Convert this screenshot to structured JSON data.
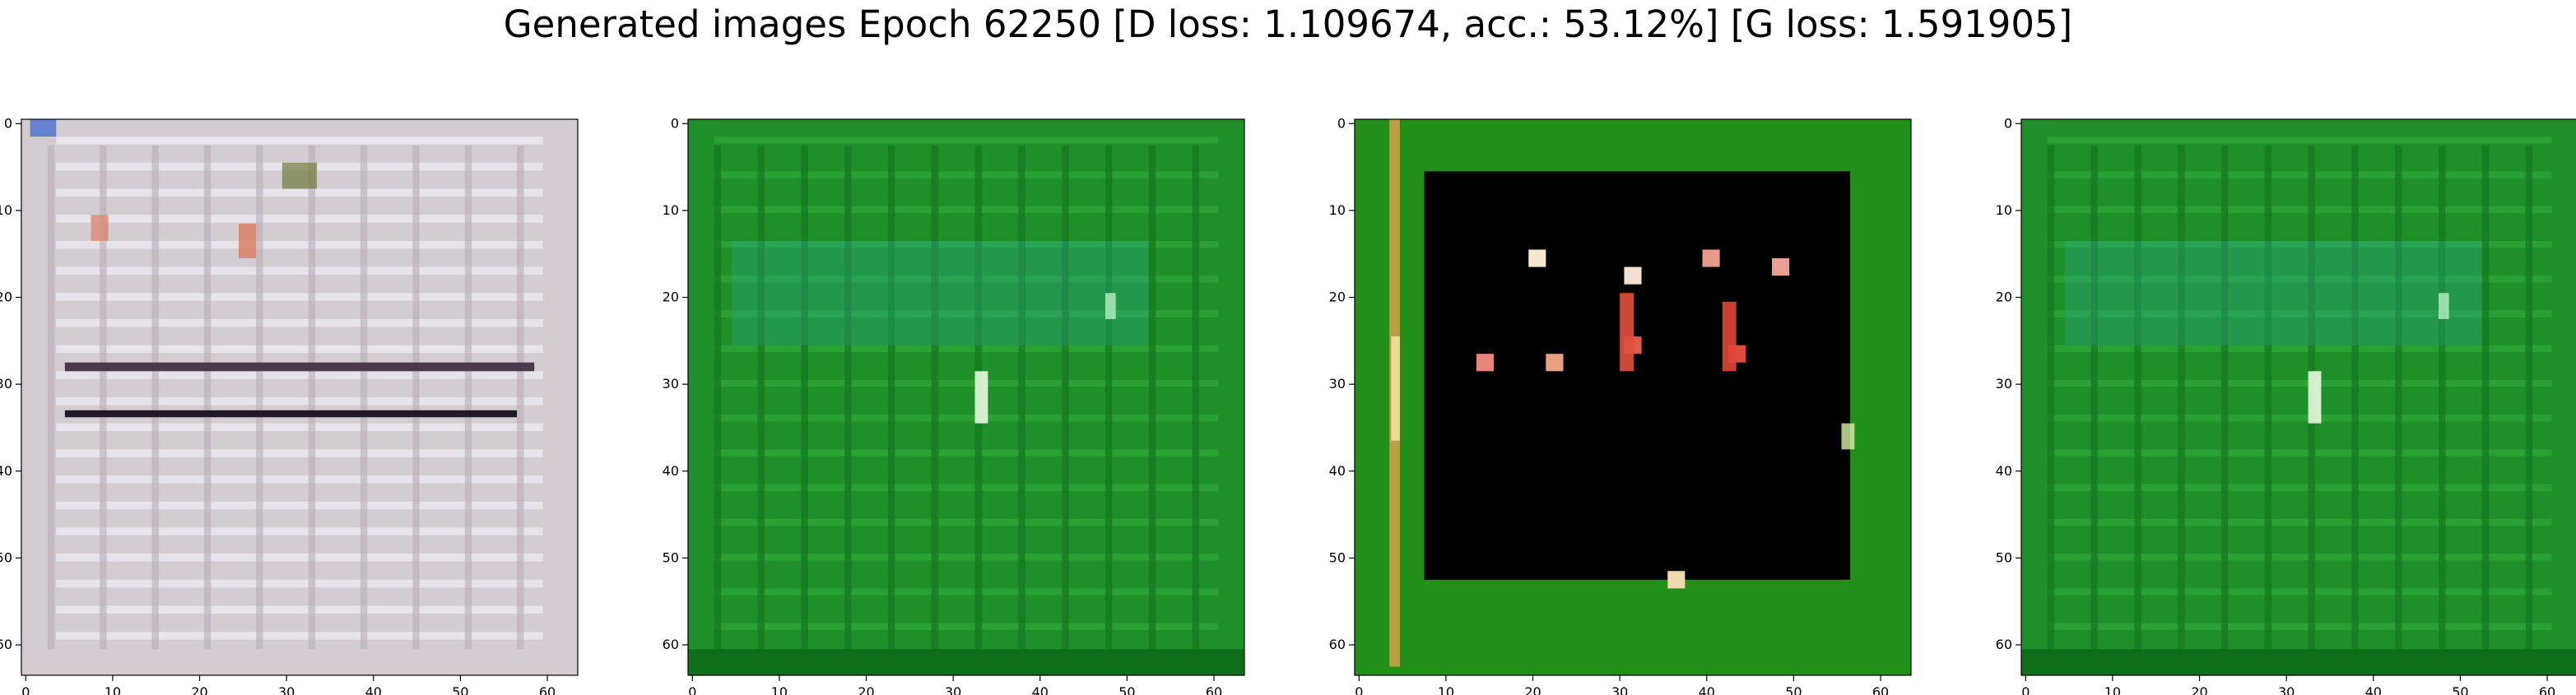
{
  "figure": {
    "title": "Generated images Epoch 62250 [D loss: 1.109674, acc.: 53.12%] [G loss: 1.591905]"
  },
  "chart_data": [
    {
      "type": "image",
      "description_colors": {
        "background": "#d3cdd2",
        "accent": "#8a7a86"
      },
      "xlim": [
        0,
        63
      ],
      "ylim": [
        63,
        0
      ],
      "xticks": [
        0,
        10,
        20,
        30,
        40,
        50,
        60
      ],
      "yticks": [
        0,
        10,
        20,
        30,
        40,
        50,
        60
      ],
      "xtick_labels": [
        "0",
        "10",
        "20",
        "30",
        "40",
        "50",
        "60"
      ],
      "ytick_labels": [
        "0",
        "10",
        "20",
        "30",
        "40",
        "50",
        "60"
      ]
    },
    {
      "type": "image",
      "description_colors": {
        "background": "#1f8f2a",
        "accent": "#2aa58d"
      },
      "xlim": [
        0,
        63
      ],
      "ylim": [
        63,
        0
      ],
      "xticks": [
        0,
        10,
        20,
        30,
        40,
        50,
        60
      ],
      "yticks": [
        0,
        10,
        20,
        30,
        40,
        50,
        60
      ],
      "xtick_labels": [
        "0",
        "10",
        "20",
        "30",
        "40",
        "50",
        "60"
      ],
      "ytick_labels": [
        "0",
        "10",
        "20",
        "30",
        "40",
        "50",
        "60"
      ]
    },
    {
      "type": "image",
      "description_colors": {
        "background": "#238f1b",
        "accent": "#000000"
      },
      "xlim": [
        0,
        63
      ],
      "ylim": [
        63,
        0
      ],
      "xticks": [
        0,
        10,
        20,
        30,
        40,
        50,
        60
      ],
      "yticks": [
        0,
        10,
        20,
        30,
        40,
        50,
        60
      ],
      "xtick_labels": [
        "0",
        "10",
        "20",
        "30",
        "40",
        "50",
        "60"
      ],
      "ytick_labels": [
        "0",
        "10",
        "20",
        "30",
        "40",
        "50",
        "60"
      ]
    },
    {
      "type": "image",
      "description_colors": {
        "background": "#1f8f2a",
        "accent": "#2aa58d"
      },
      "xlim": [
        0,
        63
      ],
      "ylim": [
        63,
        0
      ],
      "xticks": [
        0,
        10,
        20,
        30,
        40,
        50,
        60
      ],
      "yticks": [
        0,
        10,
        20,
        30,
        40,
        50,
        60
      ],
      "xtick_labels": [
        "0",
        "10",
        "20",
        "30",
        "40",
        "50",
        "60"
      ],
      "ytick_labels": [
        "0",
        "10",
        "20",
        "30",
        "40",
        "50",
        "60"
      ]
    }
  ]
}
